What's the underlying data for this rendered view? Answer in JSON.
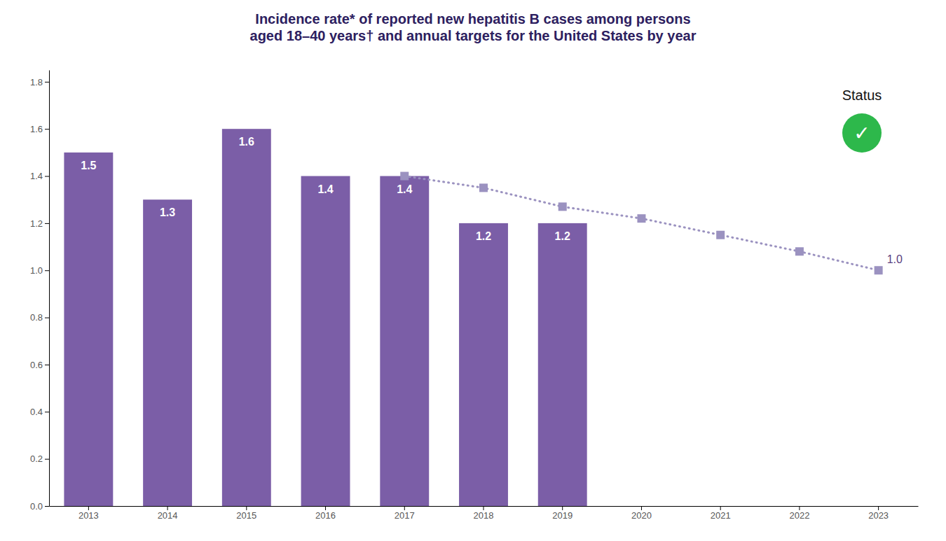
{
  "chart_data": {
    "type": "bar",
    "title": "Incidence rate* of reported new hepatitis B cases among persons\naged 18–40 years† and annual targets for the United States by year",
    "categories": [
      "2013",
      "2014",
      "2015",
      "2016",
      "2017",
      "2018",
      "2019",
      "2020",
      "2021",
      "2022",
      "2023"
    ],
    "series": [
      {
        "type": "bar",
        "color": "#7b5ea7",
        "data_labels": true,
        "values": [
          1.5,
          1.3,
          1.6,
          1.4,
          1.4,
          1.2,
          1.2,
          null,
          null,
          null,
          null
        ]
      },
      {
        "type": "line",
        "color": "#9b92c0",
        "line_style": "dotted",
        "marker": "square",
        "values": [
          null,
          null,
          null,
          null,
          1.4,
          1.35,
          1.27,
          1.22,
          1.15,
          1.08,
          1.0
        ]
      }
    ],
    "annotations": [
      {
        "text": "1.0",
        "x": "2023",
        "y": 1.0
      },
      {
        "text": "Status"
      },
      {
        "text": "✓",
        "color": "#2db84b"
      }
    ],
    "ylim": [
      0,
      1.85
    ],
    "yticks": [
      {
        "value": 0.0,
        "label": "0.0"
      },
      0.2,
      0.4,
      0.6,
      0.8,
      {
        "value": 1.0,
        "label": "1.0"
      },
      1.2,
      1.4,
      1.6,
      1.8
    ],
    "grid": false
  }
}
